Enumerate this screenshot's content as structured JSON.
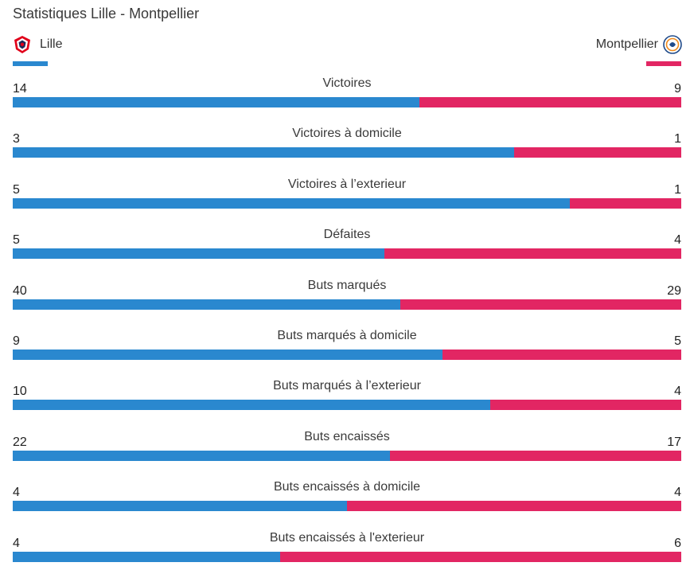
{
  "title": "Statistiques Lille - Montpellier",
  "teams": {
    "home": {
      "name": "Lille",
      "color": "#2a88cf",
      "badge_icon": "lille-crest-icon"
    },
    "away": {
      "name": "Montpellier",
      "color": "#e22663",
      "badge_icon": "montpellier-crest-icon"
    }
  },
  "chart_data": {
    "type": "bar",
    "orientation": "horizontal-stacked-comparison",
    "categories": [
      "Victoires",
      "Victoires à domicile",
      "Victoires à l’exterieur",
      "Défaites",
      "Buts marqués",
      "Buts marqués à domicile",
      "Buts marqués à l’exterieur",
      "Buts encaissés",
      "Buts encaissés à domicile",
      "Buts encaissés à l'exterieur"
    ],
    "series": [
      {
        "name": "Lille",
        "values": [
          14,
          3,
          5,
          5,
          40,
          9,
          10,
          22,
          4,
          4
        ]
      },
      {
        "name": "Montpellier",
        "values": [
          9,
          1,
          1,
          4,
          29,
          5,
          4,
          17,
          4,
          6
        ]
      }
    ]
  }
}
